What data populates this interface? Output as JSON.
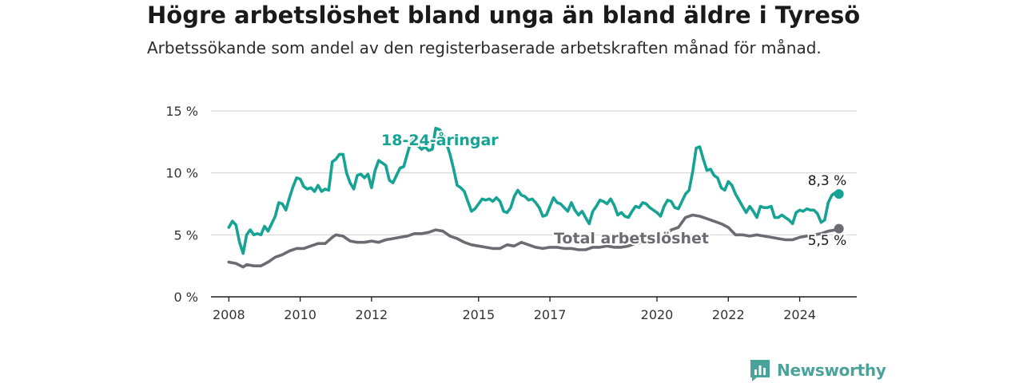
{
  "header": {
    "title": "Högre arbetslöshet bland unga än bland äldre i Tyresö",
    "subtitle": "Arbetssökande som andel av den registerbaserade arbetskraften månad för månad."
  },
  "branding": {
    "logo_text": "Newsworthy",
    "logo_icon": "bar-chart-speech-bubble-icon",
    "color": "#4aa39a"
  },
  "chart_data": {
    "type": "line",
    "ylim": [
      0,
      15
    ],
    "yticks": [
      {
        "value": 0,
        "label": "0 %"
      },
      {
        "value": 5,
        "label": "5 %"
      },
      {
        "value": 10,
        "label": "10 %"
      },
      {
        "value": 15,
        "label": "15 %"
      }
    ],
    "xlim": [
      2007.5,
      2025.6
    ],
    "xticks": [
      {
        "value": 2008,
        "label": "2008"
      },
      {
        "value": 2010,
        "label": "2010"
      },
      {
        "value": 2012,
        "label": "2012"
      },
      {
        "value": 2015,
        "label": "2015"
      },
      {
        "value": 2017,
        "label": "2017"
      },
      {
        "value": 2020,
        "label": "2020"
      },
      {
        "value": 2022,
        "label": "2022"
      },
      {
        "value": 2024,
        "label": "2024"
      }
    ],
    "grid": true,
    "series": [
      {
        "name": "18-24-åringar",
        "color": "#16a394",
        "end_label": "8,3 %",
        "points": [
          [
            2008.0,
            5.6
          ],
          [
            2008.1,
            6.1
          ],
          [
            2008.2,
            5.8
          ],
          [
            2008.3,
            4.4
          ],
          [
            2008.4,
            3.5
          ],
          [
            2008.5,
            5.0
          ],
          [
            2008.6,
            5.4
          ],
          [
            2008.7,
            5.0
          ],
          [
            2008.8,
            5.1
          ],
          [
            2008.9,
            5.0
          ],
          [
            2009.0,
            5.7
          ],
          [
            2009.1,
            5.3
          ],
          [
            2009.2,
            5.9
          ],
          [
            2009.3,
            6.5
          ],
          [
            2009.4,
            7.6
          ],
          [
            2009.5,
            7.5
          ],
          [
            2009.6,
            7.0
          ],
          [
            2009.7,
            8.0
          ],
          [
            2009.8,
            8.9
          ],
          [
            2009.9,
            9.6
          ],
          [
            2010.0,
            9.5
          ],
          [
            2010.1,
            8.9
          ],
          [
            2010.2,
            8.7
          ],
          [
            2010.3,
            8.8
          ],
          [
            2010.4,
            8.5
          ],
          [
            2010.5,
            9.0
          ],
          [
            2010.6,
            8.5
          ],
          [
            2010.7,
            8.7
          ],
          [
            2010.8,
            8.6
          ],
          [
            2010.9,
            10.9
          ],
          [
            2011.0,
            11.1
          ],
          [
            2011.1,
            11.5
          ],
          [
            2011.2,
            11.5
          ],
          [
            2011.3,
            10.0
          ],
          [
            2011.4,
            9.2
          ],
          [
            2011.5,
            8.7
          ],
          [
            2011.6,
            9.8
          ],
          [
            2011.7,
            9.9
          ],
          [
            2011.8,
            9.6
          ],
          [
            2011.9,
            9.9
          ],
          [
            2012.0,
            8.8
          ],
          [
            2012.1,
            10.2
          ],
          [
            2012.2,
            11.0
          ],
          [
            2012.3,
            10.8
          ],
          [
            2012.4,
            10.6
          ],
          [
            2012.5,
            9.4
          ],
          [
            2012.6,
            9.2
          ],
          [
            2012.7,
            9.8
          ],
          [
            2012.8,
            10.4
          ],
          [
            2012.9,
            10.5
          ],
          [
            2013.0,
            11.5
          ],
          [
            2013.1,
            12.5
          ],
          [
            2013.2,
            12.8
          ],
          [
            2013.3,
            12.2
          ],
          [
            2013.4,
            11.9
          ],
          [
            2013.5,
            12.1
          ],
          [
            2013.6,
            11.8
          ],
          [
            2013.7,
            11.9
          ],
          [
            2013.8,
            13.6
          ],
          [
            2013.9,
            13.5
          ],
          [
            2014.0,
            13.2
          ],
          [
            2014.1,
            12.4
          ],
          [
            2014.2,
            11.5
          ],
          [
            2014.3,
            10.3
          ],
          [
            2014.4,
            9.0
          ],
          [
            2014.5,
            8.8
          ],
          [
            2014.6,
            8.5
          ],
          [
            2014.7,
            7.7
          ],
          [
            2014.8,
            6.9
          ],
          [
            2014.9,
            7.1
          ],
          [
            2015.0,
            7.5
          ],
          [
            2015.1,
            7.9
          ],
          [
            2015.2,
            7.8
          ],
          [
            2015.3,
            7.9
          ],
          [
            2015.4,
            7.7
          ],
          [
            2015.5,
            8.0
          ],
          [
            2015.6,
            7.7
          ],
          [
            2015.7,
            6.9
          ],
          [
            2015.8,
            6.8
          ],
          [
            2015.9,
            7.2
          ],
          [
            2016.0,
            8.1
          ],
          [
            2016.1,
            8.6
          ],
          [
            2016.2,
            8.2
          ],
          [
            2016.3,
            8.1
          ],
          [
            2016.4,
            7.8
          ],
          [
            2016.5,
            7.9
          ],
          [
            2016.6,
            7.6
          ],
          [
            2016.7,
            7.2
          ],
          [
            2016.8,
            6.5
          ],
          [
            2016.9,
            6.6
          ],
          [
            2017.0,
            7.3
          ],
          [
            2017.1,
            8.0
          ],
          [
            2017.2,
            7.6
          ],
          [
            2017.3,
            7.5
          ],
          [
            2017.4,
            7.2
          ],
          [
            2017.5,
            6.9
          ],
          [
            2017.6,
            7.6
          ],
          [
            2017.7,
            7.0
          ],
          [
            2017.8,
            6.6
          ],
          [
            2017.9,
            6.9
          ],
          [
            2018.0,
            6.4
          ],
          [
            2018.1,
            5.9
          ],
          [
            2018.2,
            6.9
          ],
          [
            2018.3,
            7.3
          ],
          [
            2018.4,
            7.8
          ],
          [
            2018.5,
            7.7
          ],
          [
            2018.6,
            7.5
          ],
          [
            2018.7,
            7.9
          ],
          [
            2018.8,
            7.4
          ],
          [
            2018.9,
            6.6
          ],
          [
            2019.0,
            6.8
          ],
          [
            2019.1,
            6.5
          ],
          [
            2019.2,
            6.4
          ],
          [
            2019.3,
            6.9
          ],
          [
            2019.4,
            7.3
          ],
          [
            2019.5,
            7.2
          ],
          [
            2019.6,
            7.6
          ],
          [
            2019.7,
            7.5
          ],
          [
            2019.8,
            7.2
          ],
          [
            2019.9,
            7.0
          ],
          [
            2020.0,
            6.8
          ],
          [
            2020.1,
            6.5
          ],
          [
            2020.2,
            7.3
          ],
          [
            2020.3,
            7.8
          ],
          [
            2020.4,
            7.7
          ],
          [
            2020.5,
            7.2
          ],
          [
            2020.6,
            7.1
          ],
          [
            2020.7,
            7.7
          ],
          [
            2020.8,
            8.3
          ],
          [
            2020.9,
            8.6
          ],
          [
            2021.0,
            10.1
          ],
          [
            2021.1,
            12.0
          ],
          [
            2021.2,
            12.1
          ],
          [
            2021.3,
            11.1
          ],
          [
            2021.4,
            10.2
          ],
          [
            2021.5,
            10.3
          ],
          [
            2021.6,
            9.8
          ],
          [
            2021.7,
            9.6
          ],
          [
            2021.8,
            8.8
          ],
          [
            2021.9,
            8.6
          ],
          [
            2022.0,
            9.3
          ],
          [
            2022.1,
            9.0
          ],
          [
            2022.2,
            8.3
          ],
          [
            2022.3,
            7.8
          ],
          [
            2022.4,
            7.3
          ],
          [
            2022.5,
            6.8
          ],
          [
            2022.6,
            7.3
          ],
          [
            2022.7,
            6.9
          ],
          [
            2022.8,
            6.4
          ],
          [
            2022.9,
            7.3
          ],
          [
            2023.0,
            7.2
          ],
          [
            2023.1,
            7.2
          ],
          [
            2023.2,
            7.3
          ],
          [
            2023.3,
            6.4
          ],
          [
            2023.4,
            6.4
          ],
          [
            2023.5,
            6.6
          ],
          [
            2023.6,
            6.4
          ],
          [
            2023.7,
            6.2
          ],
          [
            2023.8,
            5.9
          ],
          [
            2023.9,
            6.8
          ],
          [
            2024.0,
            7.0
          ],
          [
            2024.1,
            6.9
          ],
          [
            2024.2,
            7.1
          ],
          [
            2024.3,
            7.0
          ],
          [
            2024.4,
            7.0
          ],
          [
            2024.5,
            6.7
          ],
          [
            2024.6,
            6.0
          ],
          [
            2024.7,
            6.2
          ],
          [
            2024.8,
            7.6
          ],
          [
            2024.9,
            8.2
          ],
          [
            2025.0,
            8.4
          ],
          [
            2025.1,
            8.3
          ]
        ]
      },
      {
        "name": "Total arbetslöshet",
        "color": "#6e6a72",
        "end_label": "5,5 %",
        "points": [
          [
            2008.0,
            2.8
          ],
          [
            2008.2,
            2.7
          ],
          [
            2008.4,
            2.4
          ],
          [
            2008.5,
            2.6
          ],
          [
            2008.7,
            2.5
          ],
          [
            2008.9,
            2.5
          ],
          [
            2009.1,
            2.8
          ],
          [
            2009.3,
            3.2
          ],
          [
            2009.5,
            3.4
          ],
          [
            2009.7,
            3.7
          ],
          [
            2009.9,
            3.9
          ],
          [
            2010.1,
            3.9
          ],
          [
            2010.3,
            4.1
          ],
          [
            2010.5,
            4.3
          ],
          [
            2010.7,
            4.3
          ],
          [
            2010.9,
            4.8
          ],
          [
            2011.0,
            5.0
          ],
          [
            2011.2,
            4.9
          ],
          [
            2011.4,
            4.5
          ],
          [
            2011.6,
            4.4
          ],
          [
            2011.8,
            4.4
          ],
          [
            2012.0,
            4.5
          ],
          [
            2012.2,
            4.4
          ],
          [
            2012.4,
            4.6
          ],
          [
            2012.6,
            4.7
          ],
          [
            2012.8,
            4.8
          ],
          [
            2013.0,
            4.9
          ],
          [
            2013.2,
            5.1
          ],
          [
            2013.4,
            5.1
          ],
          [
            2013.6,
            5.2
          ],
          [
            2013.8,
            5.4
          ],
          [
            2014.0,
            5.3
          ],
          [
            2014.2,
            4.9
          ],
          [
            2014.4,
            4.7
          ],
          [
            2014.6,
            4.4
          ],
          [
            2014.8,
            4.2
          ],
          [
            2015.0,
            4.1
          ],
          [
            2015.2,
            4.0
          ],
          [
            2015.4,
            3.9
          ],
          [
            2015.6,
            3.9
          ],
          [
            2015.8,
            4.2
          ],
          [
            2016.0,
            4.1
          ],
          [
            2016.2,
            4.4
          ],
          [
            2016.4,
            4.2
          ],
          [
            2016.6,
            4.0
          ],
          [
            2016.8,
            3.9
          ],
          [
            2017.0,
            4.0
          ],
          [
            2017.2,
            4.0
          ],
          [
            2017.4,
            3.9
          ],
          [
            2017.6,
            3.9
          ],
          [
            2017.8,
            3.8
          ],
          [
            2018.0,
            3.8
          ],
          [
            2018.2,
            4.0
          ],
          [
            2018.4,
            4.0
          ],
          [
            2018.6,
            4.1
          ],
          [
            2018.8,
            4.0
          ],
          [
            2019.0,
            4.0
          ],
          [
            2019.2,
            4.1
          ],
          [
            2019.4,
            4.3
          ],
          [
            2019.6,
            4.4
          ],
          [
            2019.8,
            4.4
          ],
          [
            2020.0,
            4.5
          ],
          [
            2020.2,
            4.9
          ],
          [
            2020.4,
            5.4
          ],
          [
            2020.6,
            5.6
          ],
          [
            2020.8,
            6.4
          ],
          [
            2021.0,
            6.6
          ],
          [
            2021.2,
            6.5
          ],
          [
            2021.4,
            6.3
          ],
          [
            2021.6,
            6.1
          ],
          [
            2021.8,
            5.9
          ],
          [
            2022.0,
            5.6
          ],
          [
            2022.2,
            5.0
          ],
          [
            2022.4,
            5.0
          ],
          [
            2022.6,
            4.9
          ],
          [
            2022.8,
            5.0
          ],
          [
            2023.0,
            4.9
          ],
          [
            2023.2,
            4.8
          ],
          [
            2023.4,
            4.7
          ],
          [
            2023.6,
            4.6
          ],
          [
            2023.8,
            4.6
          ],
          [
            2024.0,
            4.8
          ],
          [
            2024.2,
            4.9
          ],
          [
            2024.4,
            5.0
          ],
          [
            2024.6,
            5.1
          ],
          [
            2024.8,
            5.3
          ],
          [
            2025.0,
            5.4
          ],
          [
            2025.1,
            5.5
          ]
        ]
      }
    ]
  }
}
